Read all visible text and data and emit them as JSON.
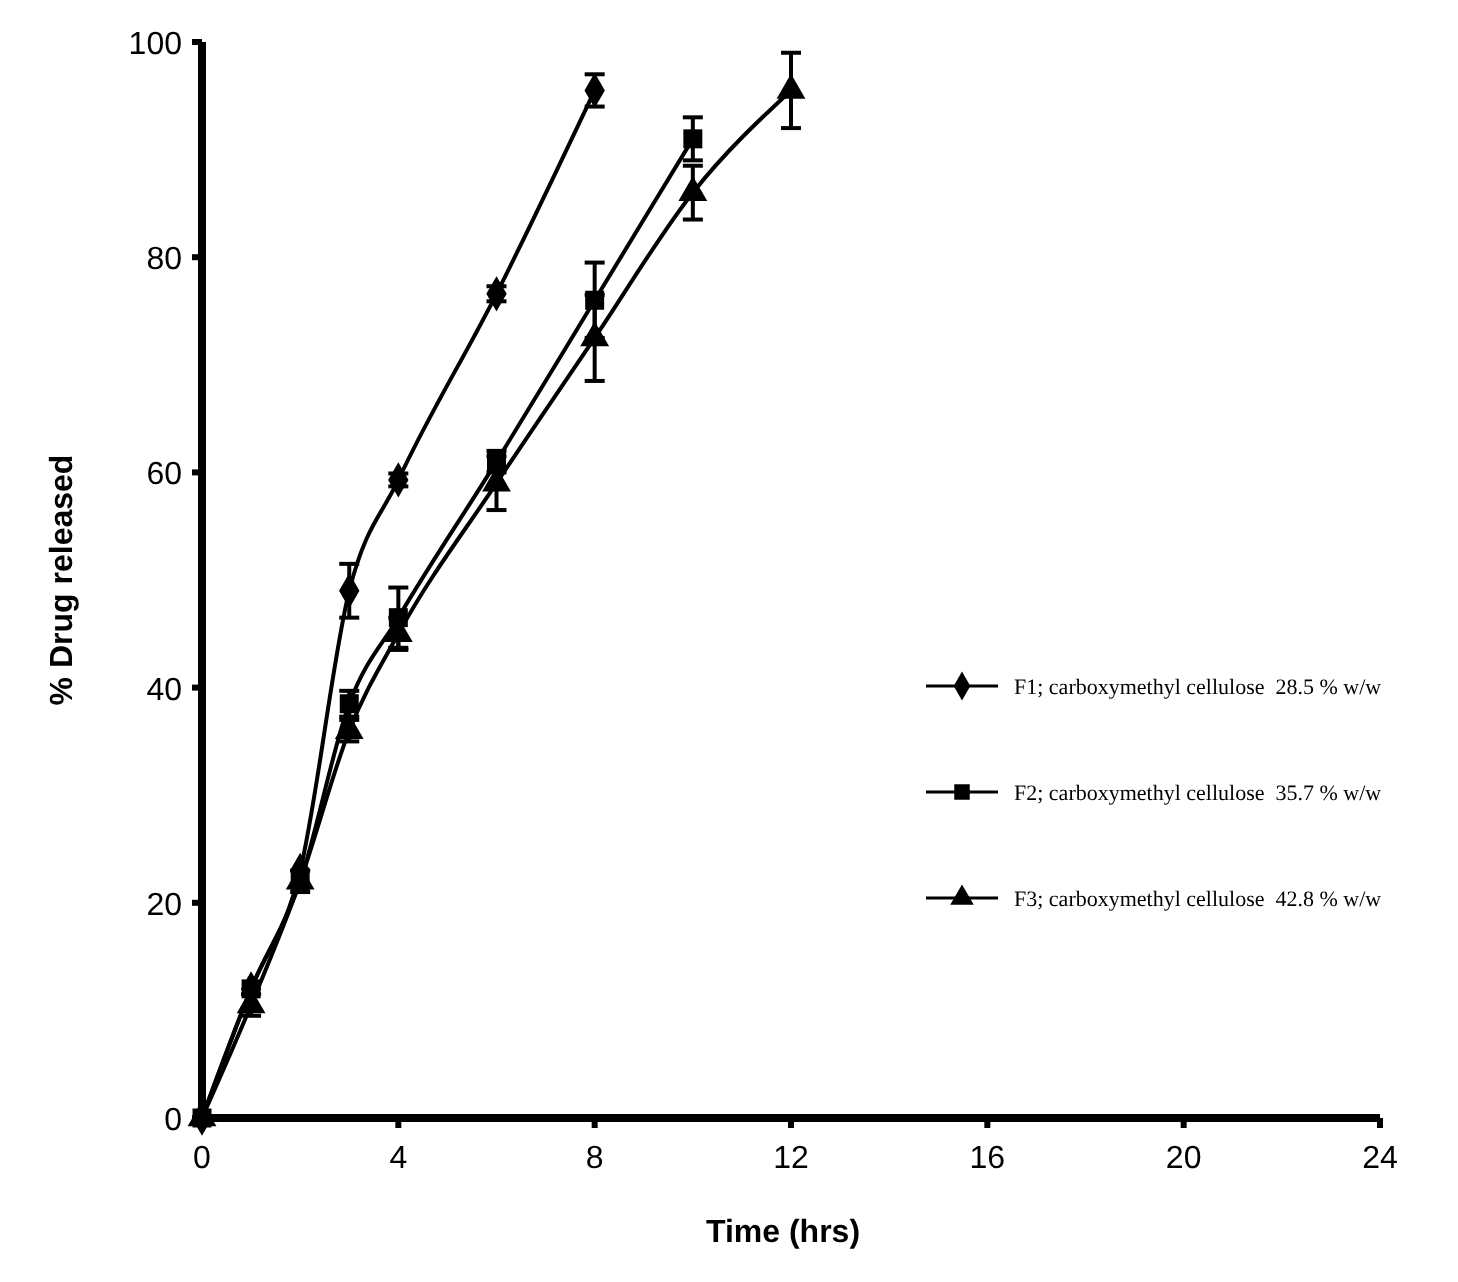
{
  "chart_data": {
    "type": "line",
    "xlabel": "Time (hrs)",
    "ylabel": "% Drug released",
    "xlim": [
      0,
      24
    ],
    "xticks": [
      0,
      4,
      8,
      12,
      16,
      20,
      24
    ],
    "ylim": [
      0,
      100
    ],
    "yticks": [
      0,
      20,
      40,
      60,
      80,
      100
    ],
    "grid": false,
    "legend": "right",
    "series": [
      {
        "name": "F1; carboxymethyl cellulose  28.5 % w/w",
        "color": "#000000",
        "marker": "diamond",
        "x": [
          0,
          1,
          2,
          3,
          4,
          6,
          8
        ],
        "values": [
          0,
          12,
          23,
          49,
          59.3,
          76.6,
          95.5
        ],
        "errors": [
          null,
          null,
          null,
          2.5,
          0.6,
          0.7,
          1.5
        ]
      },
      {
        "name": "F2; carboxymethyl cellulose  35.7 % w/w",
        "color": "#000000",
        "marker": "square",
        "x": [
          0,
          1,
          2,
          3,
          4,
          6,
          8,
          10
        ],
        "values": [
          0,
          12,
          22,
          38.5,
          46.5,
          61,
          76,
          91
        ],
        "errors": [
          null,
          null,
          null,
          1.2,
          2.8,
          1,
          3.5,
          2
        ]
      },
      {
        "name": "F3; carboxymethyl cellulose  42.8 % w/w",
        "color": "#000000",
        "marker": "triangle",
        "x": [
          0,
          1,
          2,
          3,
          4,
          6,
          8,
          10,
          12
        ],
        "values": [
          0,
          10.5,
          22,
          36,
          45,
          59,
          72.5,
          86,
          95.5
        ],
        "errors": [
          null,
          1,
          1,
          1,
          1.5,
          2.5,
          4,
          2.5,
          3.5
        ]
      }
    ]
  }
}
